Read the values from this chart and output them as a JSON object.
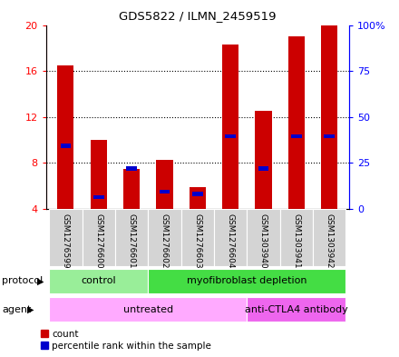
{
  "title": "GDS5822 / ILMN_2459519",
  "samples": [
    "GSM1276599",
    "GSM1276600",
    "GSM1276601",
    "GSM1276602",
    "GSM1276603",
    "GSM1276604",
    "GSM1303940",
    "GSM1303941",
    "GSM1303942"
  ],
  "counts": [
    16.5,
    10.0,
    7.5,
    8.3,
    5.9,
    18.3,
    12.5,
    19.0,
    20.0
  ],
  "percentile_values": [
    9.5,
    5.0,
    7.5,
    5.5,
    5.3,
    10.3,
    7.5,
    10.3,
    10.3
  ],
  "ylim_left": [
    4,
    20
  ],
  "ylim_right": [
    0,
    100
  ],
  "yticks_left": [
    4,
    8,
    12,
    16,
    20
  ],
  "yticks_right": [
    0,
    25,
    50,
    75,
    100
  ],
  "ytick_labels_left": [
    "4",
    "8",
    "12",
    "16",
    "20"
  ],
  "ytick_labels_right": [
    "0",
    "25",
    "50",
    "75",
    "100%"
  ],
  "bar_color": "#cc0000",
  "percentile_color": "#0000cc",
  "bar_width": 0.5,
  "protocol_groups": [
    {
      "label": "control",
      "start": 0,
      "end": 3,
      "color": "#99ee99"
    },
    {
      "label": "myofibroblast depletion",
      "start": 3,
      "end": 9,
      "color": "#44dd44"
    }
  ],
  "agent_groups": [
    {
      "label": "untreated",
      "start": 0,
      "end": 6,
      "color": "#ffaaff"
    },
    {
      "label": "anti-CTLA4 antibody",
      "start": 6,
      "end": 9,
      "color": "#ee66ee"
    }
  ],
  "background_color": "#ffffff",
  "plot_bg_color": "#ffffff",
  "grid_color": "#000000"
}
